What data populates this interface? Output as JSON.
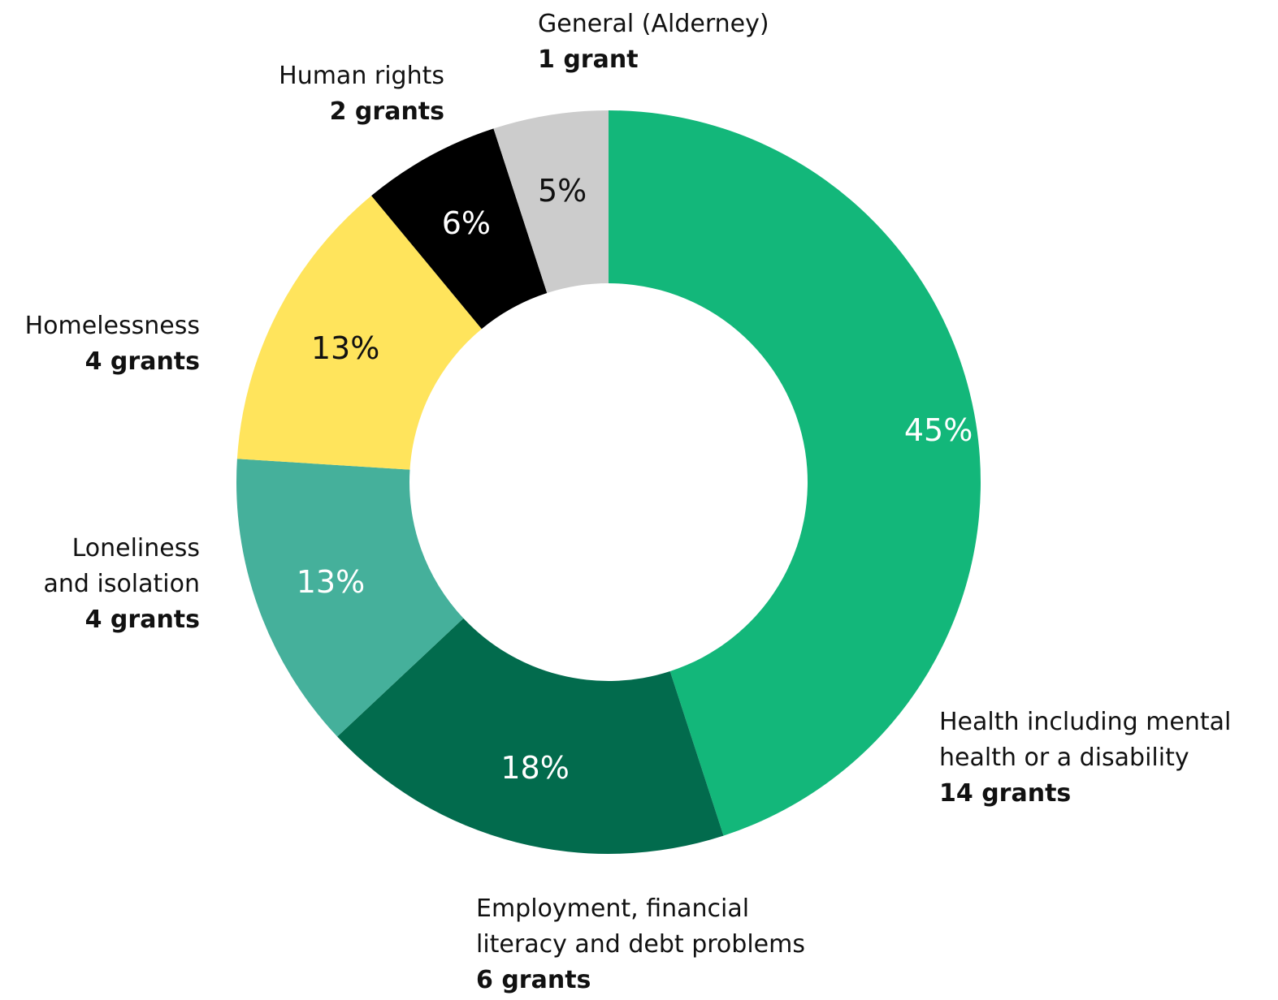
{
  "chart_data": {
    "type": "pie",
    "variant": "donut",
    "slices": [
      {
        "category_lines": [
          "Health including mental",
          "health or a disability"
        ],
        "count_label": "14 grants",
        "pct_label": "45%",
        "value": 45,
        "color": "#13b77a",
        "pct_color": "#ffffff"
      },
      {
        "category_lines": [
          "Employment, financial",
          "literacy and debt problems"
        ],
        "count_label": "6 grants",
        "pct_label": "18%",
        "value": 18,
        "color": "#026b4d",
        "pct_color": "#ffffff"
      },
      {
        "category_lines": [
          "Loneliness",
          "and isolation"
        ],
        "count_label": "4 grants",
        "pct_label": "13%",
        "value": 13,
        "color": "#45b09b",
        "pct_color": "#ffffff"
      },
      {
        "category_lines": [
          "Homelessness"
        ],
        "count_label": "4 grants",
        "pct_label": "13%",
        "value": 13,
        "color": "#ffe45c",
        "pct_color": "#111111"
      },
      {
        "category_lines": [
          "Human rights"
        ],
        "count_label": "2 grants",
        "pct_label": "6%",
        "value": 6,
        "color": "#000000",
        "pct_color": "#ffffff"
      },
      {
        "category_lines": [
          "General (Alderney)"
        ],
        "count_label": "1 grant",
        "pct_label": "5%",
        "value": 5,
        "color": "#cccccc",
        "pct_color": "#111111"
      }
    ]
  }
}
